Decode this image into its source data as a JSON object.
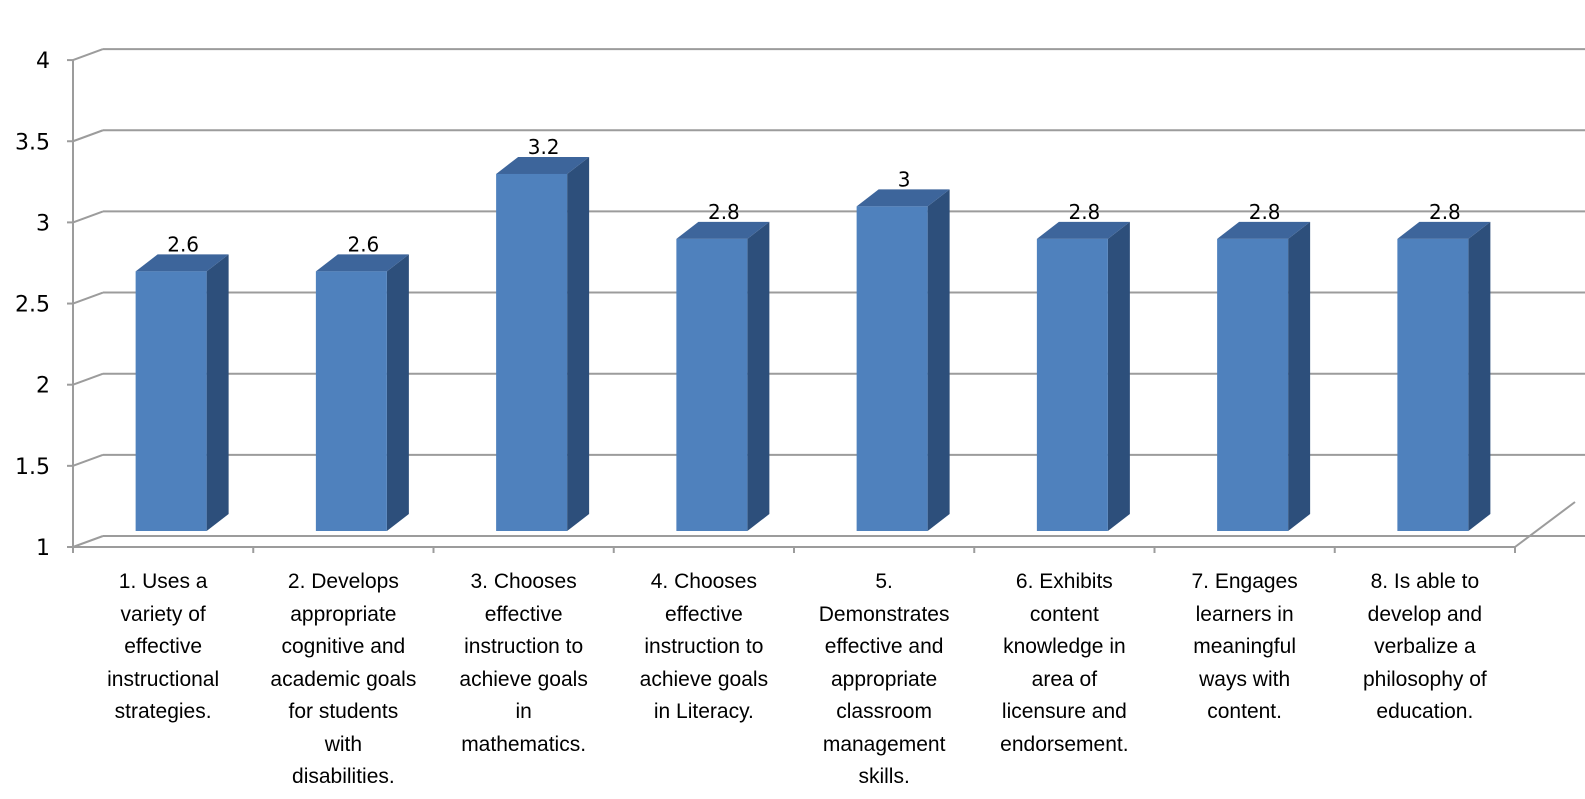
{
  "chart_data": {
    "type": "bar",
    "categories": [
      "1.  Uses a\nvariety of\neffective\ninstructional\nstrategies.",
      "2. Develops\nappropriate\ncognitive and\nacademic goals\nfor students\nwith\ndisabilities.",
      "3. Chooses\neffective\ninstruction to\nachieve goals\nin\nmathematics.",
      "4. Chooses\neffective\ninstruction to\nachieve goals\nin Literacy.",
      "5.\nDemonstrates\neffective and\nappropriate\nclassroom\nmanagement\nskills.",
      "6. Exhibits\ncontent\nknowledge in\narea of\nlicensure and\nendorsement.",
      "7. Engages\nlearners in\nmeaningful\nways with\ncontent.",
      "8. Is able to\ndevelop and\nverbalize a\nphilosophy of\neducation."
    ],
    "values": [
      2.6,
      2.6,
      3.2,
      2.8,
      3,
      2.8,
      2.8,
      2.8
    ],
    "data_labels": [
      "2.6",
      "2.6",
      "3.2",
      "2.8",
      "3",
      "2.8",
      "2.8",
      "2.8"
    ],
    "ylim": [
      1,
      4
    ],
    "yticks": [
      "1",
      "1.5",
      "2",
      "2.5",
      "3",
      "3.5",
      "4"
    ],
    "grid": true,
    "style": "3d",
    "colors": {
      "bar_front": "#4F81BD",
      "bar_side": "#2D4F7B",
      "bar_top": "#3D659B",
      "grid": "#9C9C9C"
    }
  }
}
